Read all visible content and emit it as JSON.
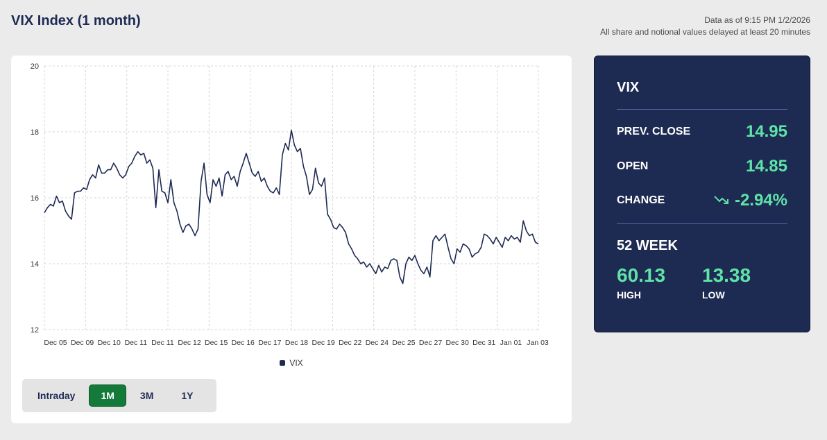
{
  "header": {
    "title": "VIX Index (1 month)",
    "data_as_of": "Data as of 9:15 PM 1/2/2026",
    "delay_note": "All share and notional values delayed at least 20 minutes"
  },
  "range_toggle": {
    "options": [
      "Intraday",
      "1M",
      "3M",
      "1Y"
    ],
    "selected": "1M"
  },
  "quote": {
    "symbol": "VIX",
    "prev_close_label": "PREV. CLOSE",
    "prev_close": "14.95",
    "open_label": "OPEN",
    "open": "14.85",
    "change_label": "CHANGE",
    "change": "-2.94%",
    "change_icon": "trending-down-icon",
    "week52_label": "52 WEEK",
    "high": "60.13",
    "high_label": "HIGH",
    "low": "13.38",
    "low_label": "LOW",
    "accent_color": "#5fe3a8",
    "panel_color": "#1d2a52"
  },
  "chart_data": {
    "type": "line",
    "ylim": [
      12,
      20
    ],
    "yticks": [
      12,
      14,
      16,
      18,
      20
    ],
    "x_tick_labels": [
      "Dec 05",
      "Dec 09",
      "Dec 10",
      "Dec 11",
      "Dec 11",
      "Dec 12",
      "Dec 15",
      "Dec 16",
      "Dec 17",
      "Dec 18",
      "Dec 19",
      "Dec 22",
      "Dec 24",
      "Dec 25",
      "Dec 27",
      "Dec 30",
      "Dec 31",
      "Jan 01",
      "Jan 03"
    ],
    "grid": true,
    "legend_position": "bottom-center",
    "series": [
      {
        "name": "VIX",
        "color": "#1d2a52",
        "values": [
          15.55,
          15.7,
          15.8,
          15.75,
          16.05,
          15.85,
          15.9,
          15.6,
          15.45,
          15.35,
          16.15,
          16.2,
          16.2,
          16.3,
          16.25,
          16.55,
          16.7,
          16.6,
          17.0,
          16.75,
          16.75,
          16.85,
          16.85,
          17.05,
          16.9,
          16.7,
          16.6,
          16.7,
          16.95,
          17.05,
          17.25,
          17.4,
          17.3,
          17.35,
          17.05,
          17.15,
          16.9,
          15.7,
          16.85,
          16.2,
          16.15,
          15.85,
          16.55,
          15.85,
          15.6,
          15.2,
          14.95,
          15.15,
          15.2,
          15.05,
          14.85,
          15.05,
          16.5,
          17.05,
          16.1,
          15.85,
          16.55,
          16.35,
          16.6,
          16.05,
          16.7,
          16.8,
          16.55,
          16.65,
          16.35,
          16.8,
          17.05,
          17.35,
          17.05,
          16.75,
          16.65,
          16.8,
          16.5,
          16.6,
          16.35,
          16.2,
          16.15,
          16.3,
          16.1,
          17.3,
          17.65,
          17.45,
          18.05,
          17.6,
          17.4,
          17.5,
          16.95,
          16.65,
          16.1,
          16.25,
          16.9,
          16.45,
          16.35,
          16.6,
          15.5,
          15.35,
          15.1,
          15.05,
          15.2,
          15.1,
          14.95,
          14.6,
          14.45,
          14.25,
          14.15,
          14.0,
          14.05,
          13.9,
          14.0,
          13.85,
          13.7,
          13.95,
          13.75,
          13.9,
          13.85,
          14.1,
          14.15,
          14.1,
          13.6,
          13.4,
          14.0,
          14.2,
          14.1,
          14.25,
          14.0,
          13.8,
          13.7,
          13.9,
          13.6,
          14.7,
          14.85,
          14.7,
          14.8,
          14.9,
          14.5,
          14.15,
          14.0,
          14.45,
          14.35,
          14.6,
          14.55,
          14.45,
          14.2,
          14.3,
          14.35,
          14.5,
          14.9,
          14.85,
          14.75,
          14.6,
          14.8,
          14.65,
          14.5,
          14.8,
          14.7,
          14.85,
          14.75,
          14.8,
          14.65,
          15.3,
          15.0,
          14.85,
          14.9,
          14.65,
          14.6
        ]
      }
    ]
  }
}
